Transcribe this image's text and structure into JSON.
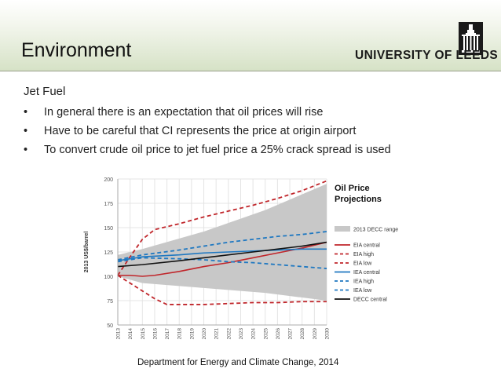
{
  "slide": {
    "title": "Environment",
    "university": "UNIVERSITY OF LEEDS",
    "subtitle": "Jet Fuel",
    "bullets": [
      "In general there is an expectation that oil prices will rise",
      "Have to be careful that CI represents the price at origin airport",
      "To convert crude oil price to jet fuel price a 25% crack spread is used"
    ],
    "bullet_symbol": "•",
    "chart_note_line1": "Oil Price",
    "chart_note_line2": "Projections",
    "source": "Department for Energy and Climate Change, 2014"
  },
  "chart_data": {
    "type": "line",
    "title": "",
    "ylabel": "2013 US$/barrel",
    "xlabel": "",
    "ylim": [
      50,
      200
    ],
    "yticks": [
      50,
      75,
      100,
      125,
      150,
      175,
      200
    ],
    "x": [
      2013,
      2014,
      2015,
      2016,
      2017,
      2018,
      2019,
      2020,
      2021,
      2022,
      2023,
      2024,
      2025,
      2026,
      2027,
      2028,
      2029,
      2030
    ],
    "band": {
      "name": "2013 DECC range",
      "color": "#c8c8c8",
      "x": [
        2013,
        2015,
        2020,
        2025,
        2030
      ],
      "upper": [
        122,
        128,
        146,
        168,
        195
      ],
      "lower": [
        100,
        93,
        88,
        83,
        75
      ]
    },
    "series": [
      {
        "name": "EIA central",
        "color": "#c0262b",
        "dash": "solid",
        "x": [
          2013,
          2014,
          2015,
          2016,
          2018,
          2020,
          2022,
          2024,
          2026,
          2028,
          2030
        ],
        "values": [
          101,
          101,
          100,
          101,
          105,
          110,
          114,
          119,
          124,
          129,
          135
        ]
      },
      {
        "name": "EIA high",
        "color": "#c0262b",
        "dash": "dashed",
        "x": [
          2013,
          2014,
          2015,
          2016,
          2018,
          2020,
          2022,
          2024,
          2026,
          2028,
          2030
        ],
        "values": [
          101,
          120,
          138,
          148,
          154,
          161,
          167,
          173,
          180,
          188,
          198
        ]
      },
      {
        "name": "EIA low",
        "color": "#c0262b",
        "dash": "dashed",
        "x": [
          2013,
          2014,
          2015,
          2016,
          2017,
          2018,
          2020,
          2022,
          2024,
          2026,
          2028,
          2030
        ],
        "values": [
          101,
          93,
          85,
          77,
          71,
          71,
          71,
          72,
          73,
          73,
          74,
          74
        ]
      },
      {
        "name": "IEA central",
        "color": "#1f78c1",
        "dash": "solid",
        "x": [
          2013,
          2015,
          2018,
          2020,
          2022,
          2024,
          2026,
          2028,
          2030
        ],
        "values": [
          116,
          120,
          122,
          124,
          125,
          126,
          127,
          128,
          128
        ]
      },
      {
        "name": "IEA high",
        "color": "#1f78c1",
        "dash": "dashed",
        "x": [
          2013,
          2015,
          2018,
          2020,
          2022,
          2024,
          2026,
          2028,
          2030
        ],
        "values": [
          117,
          122,
          127,
          131,
          135,
          138,
          141,
          143,
          146
        ]
      },
      {
        "name": "IEA low",
        "color": "#1f78c1",
        "dash": "dashed",
        "x": [
          2013,
          2015,
          2018,
          2020,
          2022,
          2024,
          2026,
          2028,
          2030
        ],
        "values": [
          115,
          119,
          118,
          117,
          115,
          114,
          112,
          110,
          108
        ]
      },
      {
        "name": "DECC central",
        "color": "#111111",
        "dash": "solid",
        "x": [
          2013,
          2015,
          2018,
          2020,
          2022,
          2024,
          2026,
          2028,
          2030
        ],
        "values": [
          110,
          112,
          116,
          119,
          122,
          125,
          128,
          131,
          135
        ]
      }
    ],
    "legend_position": "right",
    "grid": true
  }
}
